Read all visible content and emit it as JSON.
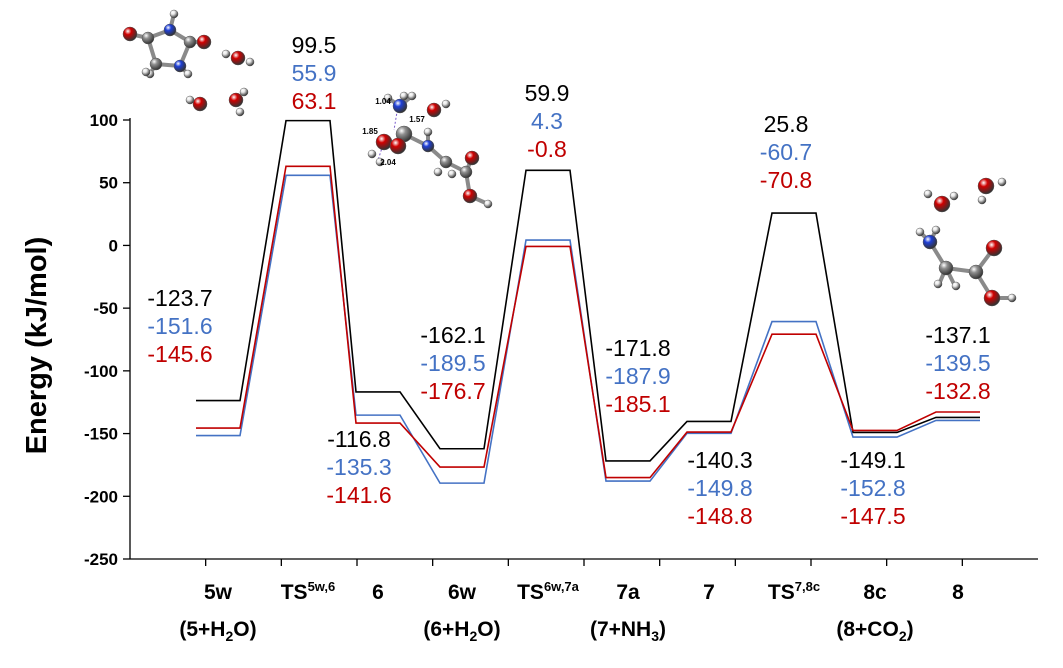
{
  "chart_data": {
    "type": "line",
    "ylabel": "Energy (kJ/mol)",
    "ylim": [
      -250,
      100
    ],
    "yticks": [
      100,
      50,
      0,
      -50,
      -100,
      -150,
      -200,
      -250
    ],
    "grid": false,
    "categories": [
      {
        "main": "5w",
        "sub": "(5+H₂O)"
      },
      {
        "main": "TS",
        "sup": "5w,6"
      },
      {
        "main": "6"
      },
      {
        "main": "6w",
        "sub": "(6+H₂O)"
      },
      {
        "main": "TS",
        "sup": "6w,7a"
      },
      {
        "main": "7a",
        "sub": "(7+NH₃)"
      },
      {
        "main": "7"
      },
      {
        "main": "TS",
        "sup": "7,8c"
      },
      {
        "main": "8c",
        "sub": "(8+CO₂)"
      },
      {
        "main": "8"
      }
    ],
    "series": [
      {
        "color": "#000000",
        "values": [
          -123.7,
          99.5,
          -116.8,
          -162.1,
          59.9,
          -171.8,
          -140.3,
          25.8,
          -149.1,
          -137.1
        ]
      },
      {
        "color": "#4472C4",
        "values": [
          -151.6,
          55.9,
          -135.3,
          -189.5,
          4.3,
          -187.9,
          -149.8,
          -60.7,
          -152.8,
          -139.5
        ]
      },
      {
        "color": "#C00000",
        "values": [
          -145.6,
          63.1,
          -141.6,
          -176.7,
          -0.8,
          -185.1,
          -148.8,
          -70.8,
          -147.5,
          -132.8
        ]
      }
    ],
    "labels": [
      [
        "-123.7",
        "-151.6",
        "-145.6"
      ],
      [
        "99.5",
        "55.9",
        "63.1"
      ],
      [
        "-116.8",
        "-135.3",
        "-141.6"
      ],
      [
        "-162.1",
        "-189.5",
        "-176.7"
      ],
      [
        "59.9",
        "4.3",
        "-0.8"
      ],
      [
        "-171.8",
        "-187.9",
        "-185.1"
      ],
      [
        "-140.3",
        "-149.8",
        "-148.8"
      ],
      [
        "25.8",
        "-60.7",
        "-70.8"
      ],
      [
        "-149.1",
        "-152.8",
        "-147.5"
      ],
      [
        "-137.1",
        "-139.5",
        "-132.8"
      ]
    ],
    "atom_labels": [
      "1.04",
      "1.57",
      "1.85",
      "2.04"
    ],
    "colors": {
      "oxygen": "#D00000",
      "nitrogen": "#1E3FD8",
      "carbon": "#909090",
      "hydrogen": "#E8E8E8"
    }
  }
}
